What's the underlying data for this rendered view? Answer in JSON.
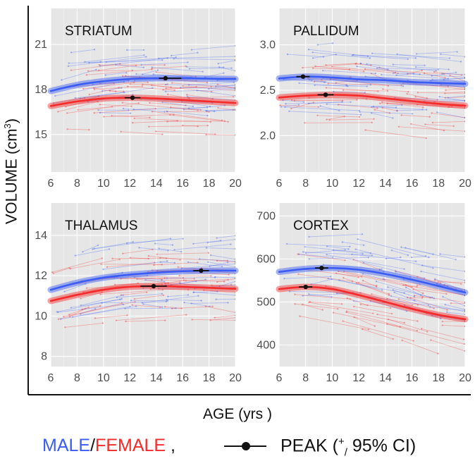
{
  "figure": {
    "ylabel_text": "VOLUME (cm",
    "ylabel_sup": "3",
    "ylabel_close": ")",
    "xlabel": "AGE (yrs )"
  },
  "legend": {
    "male": "MALE",
    "slash": "/",
    "female": "FEMALE",
    "comma": " ,",
    "peak_text": "PEAK (",
    "peak_sup": "+",
    "peak_sub": "/",
    "peak_ci": " 95% CI)"
  },
  "colors": {
    "male": "#3a5cf5",
    "female": "#f52a2a",
    "peak": "#111111",
    "panel_bg": "#e6e6e6",
    "grid": "#ffffff"
  },
  "chart_data": [
    {
      "type": "line",
      "title": "STRIATUM",
      "xlim": [
        6,
        20
      ],
      "ylim": [
        12.5,
        23.4
      ],
      "xticks": [
        6,
        8,
        10,
        12,
        14,
        16,
        18,
        20
      ],
      "yticks": [
        15,
        18,
        21
      ],
      "grid": true,
      "series": [
        {
          "name": "MALE",
          "color": "#3a5cf5",
          "x": [
            6,
            8,
            10,
            12,
            14,
            16,
            18,
            20
          ],
          "values": [
            17.9,
            18.3,
            18.55,
            18.7,
            18.75,
            18.75,
            18.72,
            18.7
          ]
        },
        {
          "name": "FEMALE",
          "color": "#f52a2a",
          "x": [
            6,
            8,
            10,
            12,
            14,
            16,
            18,
            20
          ],
          "values": [
            16.9,
            17.2,
            17.4,
            17.45,
            17.4,
            17.3,
            17.2,
            17.1
          ]
        }
      ],
      "peaks": [
        {
          "series": "MALE",
          "x": 14.7,
          "y": 18.75,
          "ci": [
            14.2,
            15.9
          ]
        },
        {
          "series": "FEMALE",
          "x": 12.2,
          "y": 17.45,
          "ci": [
            11.6,
            12.8
          ]
        }
      ]
    },
    {
      "type": "line",
      "title": "PALLIDUM",
      "xlim": [
        6,
        20
      ],
      "ylim": [
        1.6,
        3.4
      ],
      "xticks": [
        6,
        8,
        10,
        12,
        14,
        16,
        18,
        20
      ],
      "yticks": [
        2.0,
        2.5,
        3.0
      ],
      "ytick_labels": [
        "2.0",
        "2.5",
        "3.0"
      ],
      "grid": true,
      "series": [
        {
          "name": "MALE",
          "color": "#3a5cf5",
          "x": [
            6,
            8,
            10,
            12,
            14,
            16,
            18,
            20
          ],
          "values": [
            2.63,
            2.65,
            2.64,
            2.62,
            2.61,
            2.59,
            2.58,
            2.57
          ]
        },
        {
          "name": "FEMALE",
          "color": "#f52a2a",
          "x": [
            6,
            8,
            10,
            12,
            14,
            16,
            18,
            20
          ],
          "values": [
            2.42,
            2.44,
            2.45,
            2.44,
            2.41,
            2.38,
            2.35,
            2.33
          ]
        }
      ],
      "peaks": [
        {
          "series": "MALE",
          "x": 7.8,
          "y": 2.65,
          "ci": [
            7.3,
            8.3
          ]
        },
        {
          "series": "FEMALE",
          "x": 9.5,
          "y": 2.45,
          "ci": [
            8.9,
            10.1
          ]
        }
      ]
    },
    {
      "type": "line",
      "title": "THALAMUS",
      "xlim": [
        6,
        20
      ],
      "ylim": [
        7.5,
        15.6
      ],
      "xticks": [
        6,
        8,
        10,
        12,
        14,
        16,
        18,
        20
      ],
      "yticks": [
        8,
        10,
        12,
        14
      ],
      "grid": true,
      "series": [
        {
          "name": "MALE",
          "color": "#3a5cf5",
          "x": [
            6,
            8,
            10,
            12,
            14,
            16,
            18,
            20
          ],
          "values": [
            11.3,
            11.65,
            11.9,
            12.05,
            12.15,
            12.22,
            12.25,
            12.25
          ]
        },
        {
          "name": "FEMALE",
          "color": "#f52a2a",
          "x": [
            6,
            8,
            10,
            12,
            14,
            16,
            18,
            20
          ],
          "values": [
            10.75,
            11.05,
            11.3,
            11.45,
            11.48,
            11.45,
            11.4,
            11.35
          ]
        }
      ],
      "peaks": [
        {
          "series": "MALE",
          "x": 17.4,
          "y": 12.25,
          "ci": [
            16.8,
            18.0
          ]
        },
        {
          "series": "FEMALE",
          "x": 13.8,
          "y": 11.48,
          "ci": [
            12.8,
            14.8
          ]
        }
      ]
    },
    {
      "type": "line",
      "title": "CORTEX",
      "xlim": [
        6,
        20
      ],
      "ylim": [
        350,
        730
      ],
      "xticks": [
        6,
        8,
        10,
        12,
        14,
        16,
        18,
        20
      ],
      "yticks": [
        400,
        500,
        600,
        700
      ],
      "grid": true,
      "series": [
        {
          "name": "MALE",
          "color": "#3a5cf5",
          "x": [
            6,
            8,
            10,
            12,
            14,
            16,
            18,
            20
          ],
          "values": [
            570,
            577,
            579,
            575,
            565,
            552,
            537,
            522
          ]
        },
        {
          "name": "FEMALE",
          "color": "#f52a2a",
          "x": [
            6,
            8,
            10,
            12,
            14,
            16,
            18,
            20
          ],
          "values": [
            530,
            535,
            530,
            516,
            500,
            484,
            470,
            460
          ]
        }
      ],
      "peaks": [
        {
          "series": "MALE",
          "x": 9.2,
          "y": 579,
          "ci": [
            8.7,
            9.7
          ]
        },
        {
          "series": "FEMALE",
          "x": 8.0,
          "y": 535,
          "ci": [
            7.5,
            8.5
          ]
        }
      ]
    }
  ]
}
